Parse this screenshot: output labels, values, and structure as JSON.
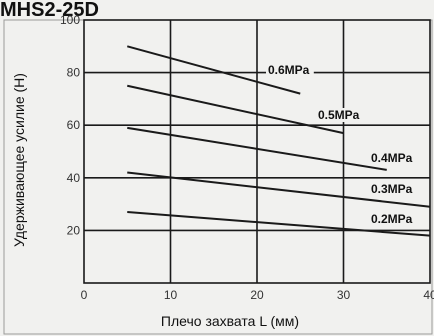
{
  "title": "MHS2-25D",
  "chart_data": {
    "type": "line",
    "xlabel": "Плечо захвата L (мм)",
    "ylabel": "Удерживающее усилие (Н)",
    "xlim": [
      0,
      40
    ],
    "ylim": [
      0,
      100
    ],
    "xticks": [
      "0",
      "10",
      "20",
      "30",
      "40"
    ],
    "yticks": [
      "20",
      "40",
      "60",
      "80",
      "100"
    ],
    "grid": true,
    "series": [
      {
        "name": "0.6MPa",
        "x": [
          5,
          25
        ],
        "y": [
          90,
          72
        ]
      },
      {
        "name": "0.5MPa",
        "x": [
          5,
          30
        ],
        "y": [
          75,
          57
        ]
      },
      {
        "name": "0.4MPa",
        "x": [
          5,
          35
        ],
        "y": [
          59,
          43
        ]
      },
      {
        "name": "0.3MPa",
        "x": [
          5,
          40
        ],
        "y": [
          42,
          29
        ]
      },
      {
        "name": "0.2MPa",
        "x": [
          5,
          40
        ],
        "y": [
          27,
          18
        ]
      }
    ]
  },
  "colors": {
    "background": "#f1f1ef",
    "line": "#1a1a1a",
    "grid": "#1a1a1a",
    "frame": "#9a9a9a"
  }
}
